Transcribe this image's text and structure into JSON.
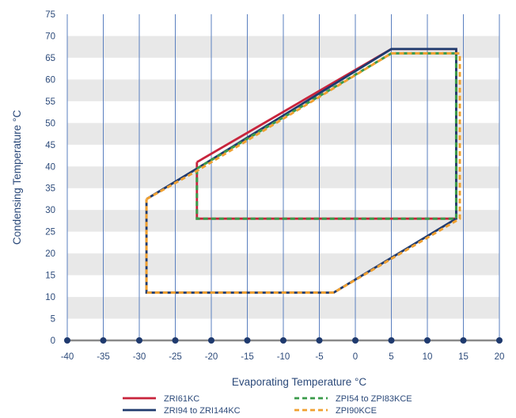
{
  "chart_data": {
    "type": "line",
    "xlabel": "Evaporating Temperature °C",
    "ylabel": "Condensing Temperature °C",
    "xlim": [
      -40,
      20
    ],
    "ylim": [
      0,
      75
    ],
    "x_ticks": [
      -40,
      -35,
      -30,
      -25,
      -20,
      -15,
      -10,
      -5,
      0,
      5,
      10,
      15,
      20
    ],
    "y_ticks": [
      0,
      5,
      10,
      15,
      20,
      25,
      30,
      35,
      40,
      45,
      50,
      55,
      60,
      65,
      70,
      75
    ],
    "grid": "vertical lines with alternating horizontal bands",
    "legend_position": "bottom",
    "series": [
      {
        "name": "ZRI61KC",
        "color": "#c8243c",
        "style": "solid",
        "points": [
          [
            -22,
            41
          ],
          [
            5,
            67
          ],
          [
            14,
            67
          ],
          [
            14,
            28
          ],
          [
            -22,
            28
          ],
          [
            -22,
            41
          ]
        ]
      },
      {
        "name": "ZRI94 to ZRI144KC",
        "color": "#1f3a6e",
        "style": "solid",
        "points": [
          [
            -29,
            32.5
          ],
          [
            -22,
            39.5
          ],
          [
            5,
            67
          ],
          [
            14,
            67
          ],
          [
            14,
            28
          ],
          [
            -3,
            11
          ],
          [
            -29,
            11
          ],
          [
            -29,
            32.5
          ]
        ]
      },
      {
        "name": "ZPI54 to ZPI83KCE",
        "color": "#3a9a4a",
        "style": "dashed",
        "points": [
          [
            -22,
            39.5
          ],
          [
            5,
            66
          ],
          [
            14,
            66
          ],
          [
            14,
            28
          ],
          [
            -22,
            28
          ],
          [
            -22,
            39.5
          ]
        ]
      },
      {
        "name": "ZPI90KCE",
        "color": "#f0a030",
        "style": "dashed",
        "points": [
          [
            -29,
            32.5
          ],
          [
            -22,
            39
          ],
          [
            5,
            66
          ],
          [
            14.5,
            66
          ],
          [
            14.5,
            28
          ],
          [
            -3,
            11
          ],
          [
            -29,
            11
          ],
          [
            -29,
            32.5
          ]
        ]
      }
    ]
  }
}
